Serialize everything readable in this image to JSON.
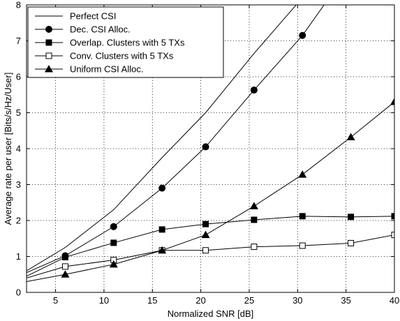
{
  "chart_data": {
    "type": "line",
    "title": "",
    "xlabel": "Normalized SNR [dB]",
    "ylabel": "Average rate per user [Bits/s/Hz/User]",
    "xlim": [
      2,
      40
    ],
    "ylim": [
      0,
      8
    ],
    "xticks": [
      5,
      10,
      15,
      20,
      25,
      30,
      35,
      40
    ],
    "yticks": [
      0,
      1,
      2,
      3,
      4,
      5,
      6,
      7,
      8
    ],
    "grid": true,
    "legend_position": "top-left",
    "series": [
      {
        "name": "Perfect CSI",
        "marker": "none",
        "x": [
          2,
          6,
          11,
          16,
          20.5,
          25.5,
          30.5,
          33
        ],
        "y": [
          0.6,
          1.25,
          2.3,
          3.75,
          5.0,
          6.65,
          8.2,
          9.0
        ]
      },
      {
        "name": "Dec. CSI Alloc.",
        "marker": "circle-filled",
        "x": [
          2,
          6,
          11,
          16,
          20.5,
          25.5,
          30.5,
          33
        ],
        "y": [
          0.55,
          1.02,
          1.83,
          2.9,
          4.05,
          5.63,
          7.15,
          8.1
        ]
      },
      {
        "name": "Overlap. Clusters with 5 TXs",
        "marker": "square-filled",
        "x": [
          2,
          6,
          11,
          16,
          20.5,
          25.5,
          30.5,
          35.5,
          40
        ],
        "y": [
          0.45,
          0.98,
          1.38,
          1.75,
          1.9,
          2.02,
          2.12,
          2.1,
          2.12
        ]
      },
      {
        "name": "Conv. Clusters with 5 TXs",
        "marker": "square-open",
        "x": [
          2,
          6,
          11,
          16,
          20.5,
          25.5,
          30.5,
          35.5,
          40
        ],
        "y": [
          0.4,
          0.72,
          0.9,
          1.17,
          1.17,
          1.27,
          1.3,
          1.37,
          1.6
        ]
      },
      {
        "name": "Uniform  CSI Alloc.",
        "marker": "triangle-filled",
        "x": [
          2,
          6,
          11,
          16,
          20.5,
          25.5,
          30.5,
          35.5,
          40
        ],
        "y": [
          0.3,
          0.5,
          0.78,
          1.17,
          1.6,
          2.4,
          3.28,
          4.32,
          5.3
        ]
      }
    ]
  }
}
